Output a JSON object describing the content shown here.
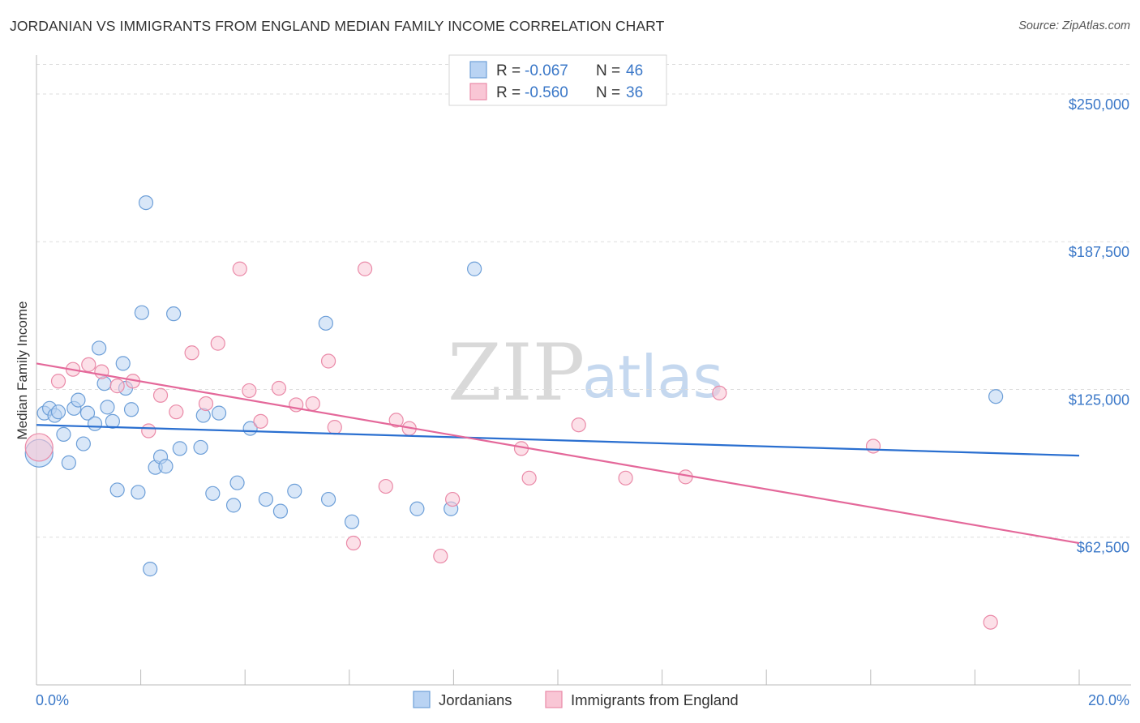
{
  "header": {
    "title": "JORDANIAN VS IMMIGRANTS FROM ENGLAND MEDIAN FAMILY INCOME CORRELATION CHART",
    "source": "Source: ZipAtlas.com"
  },
  "watermark": {
    "part1": "ZIP",
    "part2": "atlas"
  },
  "chart_data": {
    "type": "scatter",
    "title": "JORDANIAN VS IMMIGRANTS FROM ENGLAND MEDIAN FAMILY INCOME CORRELATION CHART",
    "xlabel": "",
    "ylabel": "Median Family Income",
    "xlim": [
      0,
      20
    ],
    "ylim": [
      0,
      262500
    ],
    "x_tick_labels": [
      "0.0%",
      "20.0%"
    ],
    "y_ticks": [
      62500,
      125000,
      187500,
      250000
    ],
    "y_tick_labels": [
      "$62,500",
      "$125,000",
      "$187,500",
      "$250,000"
    ],
    "grid": true,
    "legend_position": "top-center",
    "colors": {
      "jordanians_fill": "#b9d3f3",
      "jordanians_stroke": "#6d9fd8",
      "jordanians_line": "#2a6fd0",
      "england_fill": "#f9c6d5",
      "england_stroke": "#ea8aa8",
      "england_line": "#e4689a",
      "tick_text": "#3b78c8"
    },
    "series": [
      {
        "name": "Jordanians",
        "R": "-0.067",
        "N": "46",
        "trend": {
          "x": [
            0,
            20
          ],
          "y": [
            110000,
            97000
          ]
        },
        "points": [
          {
            "x": 0.05,
            "y": 98000,
            "big": true
          },
          {
            "x": 0.15,
            "y": 115000
          },
          {
            "x": 0.25,
            "y": 117000
          },
          {
            "x": 0.35,
            "y": 114000
          },
          {
            "x": 0.42,
            "y": 115500
          },
          {
            "x": 0.52,
            "y": 106000
          },
          {
            "x": 0.62,
            "y": 94000
          },
          {
            "x": 0.72,
            "y": 117000
          },
          {
            "x": 0.8,
            "y": 120500
          },
          {
            "x": 0.9,
            "y": 102000
          },
          {
            "x": 0.98,
            "y": 115000
          },
          {
            "x": 1.12,
            "y": 110500
          },
          {
            "x": 1.2,
            "y": 142500
          },
          {
            "x": 1.3,
            "y": 127500
          },
          {
            "x": 1.36,
            "y": 117500
          },
          {
            "x": 1.46,
            "y": 111500
          },
          {
            "x": 1.55,
            "y": 82500
          },
          {
            "x": 1.66,
            "y": 136000
          },
          {
            "x": 1.71,
            "y": 125500
          },
          {
            "x": 1.82,
            "y": 116500
          },
          {
            "x": 1.95,
            "y": 81500
          },
          {
            "x": 2.02,
            "y": 157500
          },
          {
            "x": 2.1,
            "y": 204000
          },
          {
            "x": 2.18,
            "y": 49000
          },
          {
            "x": 2.28,
            "y": 92000
          },
          {
            "x": 2.38,
            "y": 96500
          },
          {
            "x": 2.48,
            "y": 92500
          },
          {
            "x": 2.63,
            "y": 157000
          },
          {
            "x": 2.75,
            "y": 100000
          },
          {
            "x": 3.15,
            "y": 100500
          },
          {
            "x": 3.2,
            "y": 114000
          },
          {
            "x": 3.38,
            "y": 81000
          },
          {
            "x": 3.5,
            "y": 115000
          },
          {
            "x": 3.78,
            "y": 76000
          },
          {
            "x": 3.85,
            "y": 85500
          },
          {
            "x": 4.1,
            "y": 108500
          },
          {
            "x": 4.4,
            "y": 78500
          },
          {
            "x": 4.68,
            "y": 73500
          },
          {
            "x": 4.95,
            "y": 82000
          },
          {
            "x": 5.55,
            "y": 153000
          },
          {
            "x": 5.6,
            "y": 78500
          },
          {
            "x": 6.05,
            "y": 69000
          },
          {
            "x": 7.3,
            "y": 74500
          },
          {
            "x": 7.95,
            "y": 74500
          },
          {
            "x": 8.4,
            "y": 176000
          },
          {
            "x": 18.4,
            "y": 122000
          }
        ]
      },
      {
        "name": "Immigrants from England",
        "R": "-0.560",
        "N": "36",
        "trend": {
          "x": [
            0,
            20
          ],
          "y": [
            136000,
            60000
          ]
        },
        "points": [
          {
            "x": 0.05,
            "y": 100500,
            "big": true
          },
          {
            "x": 0.42,
            "y": 128500
          },
          {
            "x": 0.7,
            "y": 133500
          },
          {
            "x": 1.0,
            "y": 135500
          },
          {
            "x": 1.25,
            "y": 132500
          },
          {
            "x": 1.55,
            "y": 126500
          },
          {
            "x": 1.85,
            "y": 128500
          },
          {
            "x": 2.15,
            "y": 107500
          },
          {
            "x": 2.38,
            "y": 122500
          },
          {
            "x": 2.68,
            "y": 115500
          },
          {
            "x": 2.98,
            "y": 140500
          },
          {
            "x": 3.25,
            "y": 119000
          },
          {
            "x": 3.48,
            "y": 144500
          },
          {
            "x": 3.9,
            "y": 176000
          },
          {
            "x": 4.08,
            "y": 124500
          },
          {
            "x": 4.3,
            "y": 111500
          },
          {
            "x": 4.65,
            "y": 125500
          },
          {
            "x": 4.98,
            "y": 118500
          },
          {
            "x": 5.3,
            "y": 119000
          },
          {
            "x": 5.6,
            "y": 137000
          },
          {
            "x": 5.72,
            "y": 109000
          },
          {
            "x": 6.08,
            "y": 60000
          },
          {
            "x": 6.3,
            "y": 176000
          },
          {
            "x": 6.7,
            "y": 84000
          },
          {
            "x": 6.9,
            "y": 112000
          },
          {
            "x": 7.15,
            "y": 108500
          },
          {
            "x": 7.75,
            "y": 54500
          },
          {
            "x": 7.98,
            "y": 78500
          },
          {
            "x": 9.3,
            "y": 100000
          },
          {
            "x": 9.45,
            "y": 87500
          },
          {
            "x": 10.4,
            "y": 110000
          },
          {
            "x": 11.3,
            "y": 87500
          },
          {
            "x": 12.45,
            "y": 88000
          },
          {
            "x": 13.1,
            "y": 123500
          },
          {
            "x": 16.05,
            "y": 101000
          },
          {
            "x": 18.3,
            "y": 26500
          }
        ]
      }
    ]
  }
}
